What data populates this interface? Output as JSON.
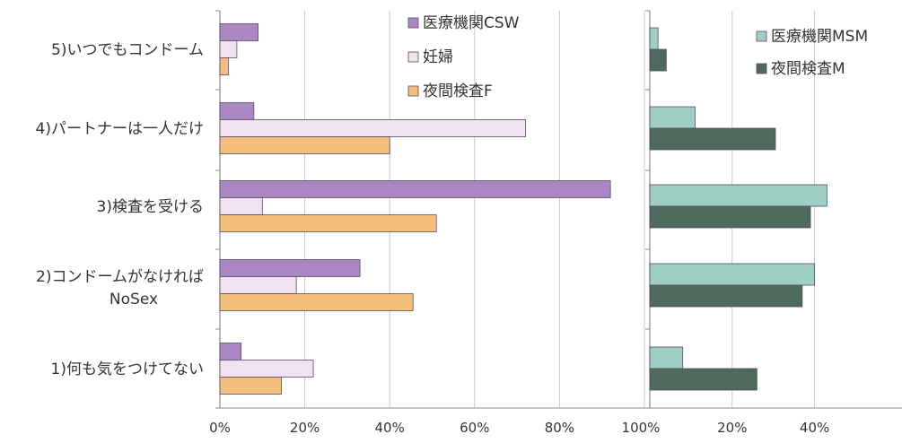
{
  "chart_data": [
    {
      "type": "bar",
      "orientation": "horizontal",
      "categories": [
        "1)何も気をつけてない",
        "2)コンドームがなければ NoSex",
        "3)検査を受ける",
        "4)パートナーは一人だけ",
        "5)いつでもコンドーム"
      ],
      "category_lines": [
        [
          "1)何も気をつけてない"
        ],
        [
          "2)コンドームがなければ",
          "NoSex"
        ],
        [
          "3)検査を受ける"
        ],
        [
          "4)パートナーは一人だけ"
        ],
        [
          "5)いつでもコンドーム"
        ]
      ],
      "series": [
        {
          "name": "医療機関CSW",
          "color": "#a987c2",
          "values": [
            5,
            33,
            92,
            8,
            9
          ]
        },
        {
          "name": "妊婦",
          "color": "#f0e2f0",
          "values": [
            22,
            18,
            10,
            72,
            4
          ]
        },
        {
          "name": "夜間検査F",
          "color": "#f2bf7c",
          "values": [
            14.5,
            45.5,
            51,
            40,
            2
          ]
        }
      ],
      "xlim": [
        0,
        100
      ],
      "xticks": [
        0,
        20,
        40,
        60,
        80,
        100
      ],
      "xtick_labels": [
        "0%",
        "20%",
        "40%",
        "60%",
        "80%",
        "100%"
      ],
      "grid": true,
      "legend": "top-right"
    },
    {
      "type": "bar",
      "orientation": "horizontal",
      "categories": [
        "1)何も気をつけてない",
        "2)コンドームがなければ NoSex",
        "3)検査を受ける",
        "4)パートナーは一人だけ",
        "5)いつでもコンドーム"
      ],
      "series": [
        {
          "name": "医療機関MSM",
          "color": "#9fcfc4",
          "values": [
            8,
            40,
            43,
            11,
            2
          ]
        },
        {
          "name": "夜間検査M",
          "color": "#4e6a5c",
          "values": [
            26,
            37,
            39,
            30.5,
            4
          ]
        }
      ],
      "xlim": [
        0,
        50
      ],
      "xticks": [
        20,
        40
      ],
      "xtick_labels": [
        "20%",
        "40%"
      ],
      "grid": true,
      "legend": "top-right"
    }
  ]
}
